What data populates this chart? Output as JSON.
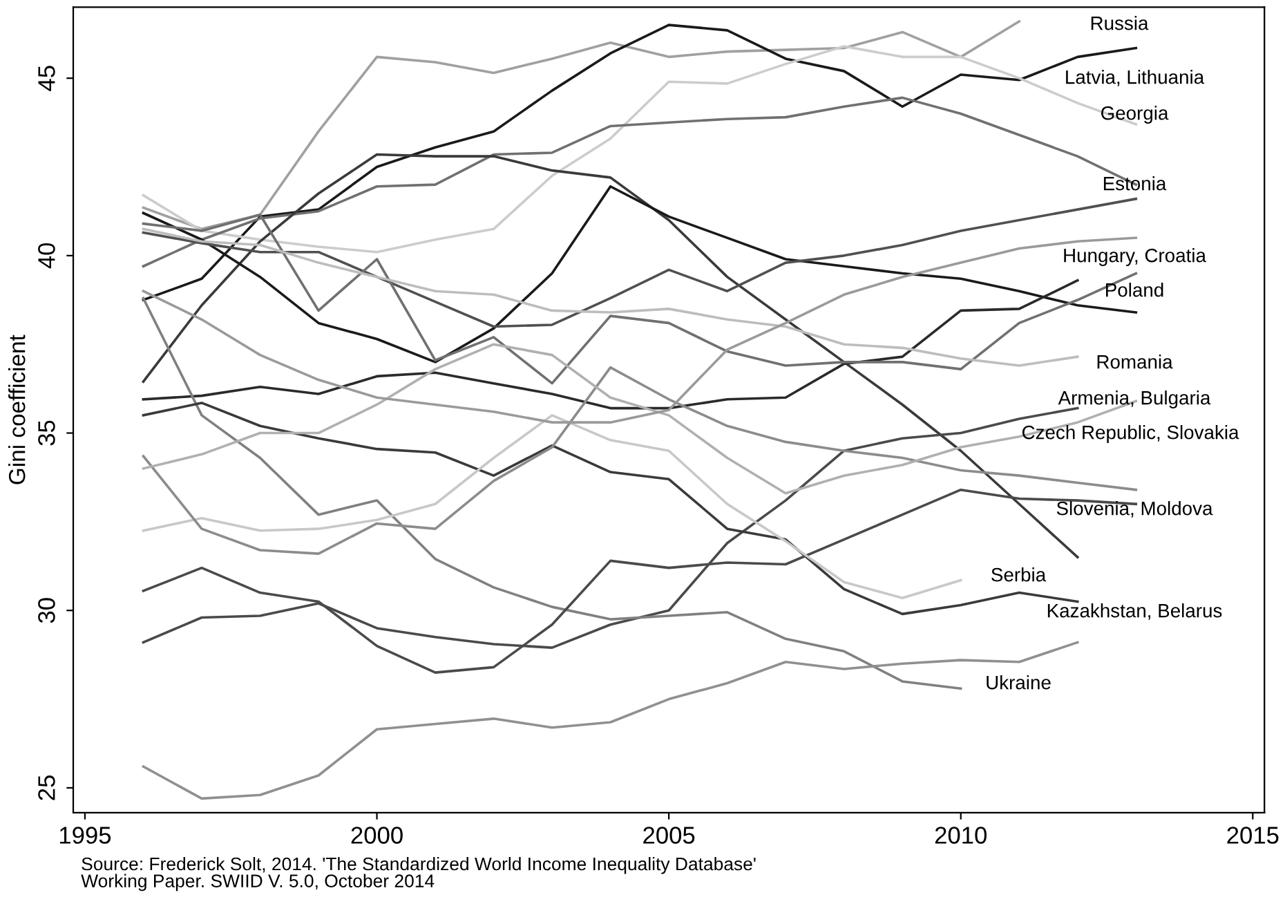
{
  "chart_data": {
    "type": "line",
    "ylabel": "Gini coefficient",
    "x": [
      1996,
      1997,
      1998,
      1999,
      2000,
      2001,
      2002,
      2003,
      2004,
      2005,
      2006,
      2007,
      2008,
      2009,
      2010,
      2011,
      2012,
      2013
    ],
    "xlim": [
      1994.8,
      2015.2
    ],
    "xticks": [
      1995,
      2000,
      2005,
      2010,
      2015
    ],
    "ylim": [
      24.3,
      47
    ],
    "yticks": [
      25,
      30,
      35,
      40,
      45
    ],
    "grid": false,
    "marker": "none",
    "line_style": "solid",
    "series": [
      {
        "color": "#a0a0a0",
        "values": [
          41.35,
          40.75,
          41.15,
          43.5,
          45.6,
          45.45,
          45.15,
          45.55,
          46.0,
          45.6,
          45.75,
          45.8,
          45.85,
          46.3,
          45.6,
          46.6,
          null,
          null
        ]
      },
      {
        "color": "#1a1a1a",
        "values": [
          38.75,
          39.35,
          41.1,
          41.3,
          42.5,
          43.05,
          43.5,
          44.65,
          45.7,
          46.5,
          46.35,
          45.55,
          45.2,
          44.2,
          45.1,
          44.95,
          45.6,
          45.85
        ]
      },
      {
        "color": "#cccccc",
        "values": [
          41.7,
          40.7,
          40.45,
          40.25,
          40.1,
          40.45,
          40.75,
          42.25,
          43.3,
          44.9,
          44.85,
          45.4,
          45.9,
          45.6,
          45.6,
          45.0,
          44.3,
          43.7
        ]
      },
      {
        "color": "#707070",
        "values": [
          39.7,
          40.45,
          41.05,
          41.25,
          41.95,
          42.0,
          42.85,
          42.9,
          43.65,
          43.75,
          43.85,
          43.9,
          44.2,
          44.45,
          44.0,
          43.4,
          42.8,
          42.0
        ]
      },
      {
        "color": "#3a3a3a",
        "values": [
          36.45,
          38.6,
          40.4,
          41.75,
          42.85,
          42.8,
          42.8,
          42.4,
          42.2,
          41.0,
          39.4,
          38.2,
          37.0,
          35.8,
          34.5,
          33.0,
          31.5,
          null
        ]
      },
      {
        "color": "#1a1a1a",
        "values": [
          41.2,
          40.45,
          39.4,
          38.1,
          37.65,
          37.0,
          37.95,
          39.5,
          41.95,
          41.1,
          40.5,
          39.9,
          39.7,
          39.5,
          39.35,
          39.0,
          38.6,
          38.4
        ]
      },
      {
        "color": "#505050",
        "values": [
          40.65,
          40.35,
          40.1,
          40.1,
          39.4,
          38.7,
          38.0,
          38.05,
          38.8,
          39.6,
          39.0,
          39.8,
          40.0,
          40.3,
          40.7,
          41.0,
          41.3,
          41.6
        ]
      },
      {
        "color": "#2a2a2a",
        "values": [
          35.95,
          36.05,
          36.3,
          36.1,
          36.6,
          36.7,
          36.4,
          36.1,
          35.7,
          35.7,
          35.95,
          36.0,
          36.95,
          37.15,
          38.45,
          38.5,
          39.3,
          null
        ]
      },
      {
        "color": "#707070",
        "values": [
          40.9,
          40.7,
          41.15,
          38.45,
          39.9,
          37.05,
          37.7,
          36.4,
          38.3,
          38.1,
          37.3,
          36.9,
          37.0,
          37.0,
          36.8,
          38.1,
          38.75,
          39.5
        ]
      },
      {
        "color": "#bdbdbd",
        "values": [
          40.75,
          40.4,
          40.3,
          39.8,
          39.4,
          39.0,
          38.9,
          38.45,
          38.4,
          38.5,
          38.2,
          38.0,
          37.5,
          37.4,
          37.1,
          36.9,
          37.15,
          null
        ]
      },
      {
        "color": "#4a4a4a",
        "values": [
          29.1,
          29.8,
          29.85,
          30.2,
          29.5,
          29.25,
          29.05,
          28.95,
          29.6,
          30.0,
          31.9,
          33.1,
          34.5,
          34.85,
          35.0,
          35.4,
          35.7,
          null
        ]
      },
      {
        "color": "#808080",
        "values": [
          38.8,
          35.5,
          34.3,
          32.7,
          33.1,
          31.45,
          30.65,
          30.1,
          29.75,
          29.85,
          29.95,
          29.2,
          28.85,
          28.0,
          27.8,
          null,
          null,
          null
        ]
      },
      {
        "color": "#4a4a4a",
        "values": [
          30.55,
          31.2,
          30.5,
          30.25,
          29.0,
          28.25,
          28.4,
          29.6,
          31.4,
          31.2,
          31.35,
          31.3,
          32.0,
          32.7,
          33.4,
          33.15,
          33.1,
          33.0
        ]
      },
      {
        "color": "#3a3a3a",
        "values": [
          35.5,
          35.85,
          35.2,
          34.85,
          34.55,
          34.45,
          33.8,
          34.65,
          33.9,
          33.7,
          32.3,
          32.0,
          30.6,
          29.9,
          30.15,
          30.5,
          30.25,
          null
        ]
      },
      {
        "color": "#c8c8c8",
        "values": [
          32.25,
          32.6,
          32.25,
          32.3,
          32.55,
          33.0,
          34.3,
          35.5,
          34.8,
          34.5,
          33.0,
          31.95,
          30.8,
          30.35,
          30.85,
          null,
          null,
          null
        ]
      },
      {
        "color": "#8c8c8c",
        "values": [
          34.35,
          32.3,
          31.7,
          31.6,
          32.45,
          32.3,
          33.65,
          34.6,
          36.85,
          35.95,
          35.2,
          34.75,
          34.5,
          34.3,
          33.95,
          33.8,
          33.6,
          33.4
        ]
      },
      {
        "color": "#b0b0b0",
        "values": [
          34.0,
          34.4,
          35.0,
          35.0,
          35.8,
          36.8,
          37.5,
          37.2,
          36.0,
          35.5,
          34.3,
          33.3,
          33.8,
          34.1,
          34.6,
          34.9,
          35.3,
          35.9
        ]
      },
      {
        "color": "#9a9a9a",
        "values": [
          39.0,
          38.2,
          37.2,
          36.5,
          36.0,
          35.8,
          35.6,
          35.3,
          35.3,
          35.65,
          37.35,
          38.1,
          38.9,
          39.4,
          39.8,
          40.2,
          40.4,
          40.5
        ]
      },
      {
        "color": "#909090",
        "values": [
          25.6,
          24.7,
          24.8,
          25.35,
          26.65,
          26.8,
          26.95,
          26.7,
          26.85,
          27.5,
          27.95,
          28.55,
          28.35,
          28.5,
          28.6,
          28.55,
          29.1,
          null
        ]
      }
    ],
    "annotations": [
      "Russia",
      "Latvia, Lithuania",
      "Georgia",
      "Estonia",
      "Hungary, Croatia",
      "Poland",
      "Romania",
      "Armenia, Bulgaria",
      "Czech Republic, Slovakia",
      "Slovenia, Moldova",
      "Serbia",
      "Kazakhstan, Belarus",
      "Ukraine",
      "Source: Frederick Solt, 2014. 'The Standardized World Income Inequality Database'\nWorking Paper. SWIID V. 5.0, October 2014"
    ]
  }
}
